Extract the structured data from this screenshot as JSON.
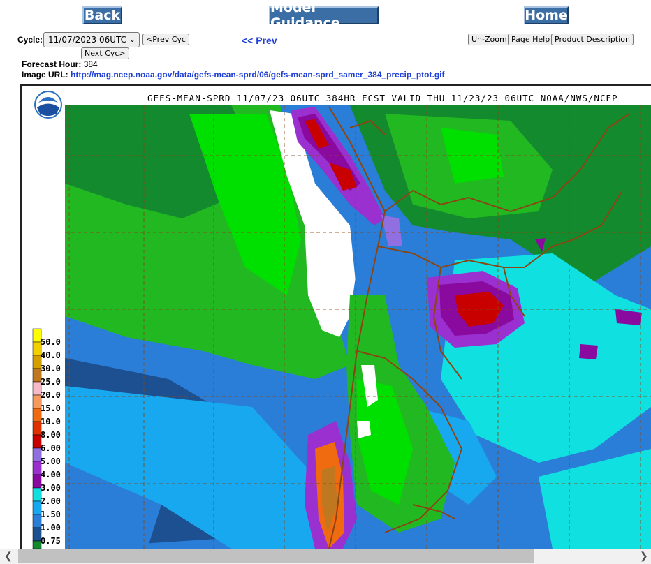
{
  "nav": {
    "back": "Back",
    "model_guidance": "Model Guidance",
    "home": "Home"
  },
  "cycle": {
    "label": "Cycle:",
    "selected": "11/07/2023 06UTC",
    "prev_cyc": "<Prev Cyc",
    "next_cyc": "Next Cyc>"
  },
  "prev_link": "<< Prev",
  "tools": {
    "unzoom": "Un-Zoom",
    "page_help": "Page Help",
    "product_description": "Product Description"
  },
  "info": {
    "forecast_hour_label": "Forecast Hour:",
    "forecast_hour": "384",
    "image_url_label": "Image URL:",
    "image_url": "http://mag.ncep.noaa.gov/data/gefs-mean-sprd/06/gefs-mean-sprd_samer_384_precip_ptot.gif"
  },
  "map": {
    "title": "GEFS-MEAN-SPRD 11/07/23 06UTC 384HR FCST VALID THU 11/23/23 06UTC NOAA/NWS/NCEP",
    "logo_text": "NOAA"
  },
  "legend": [
    {
      "label": "50.0",
      "color": "#ffff00"
    },
    {
      "label": "40.0",
      "color": "#f2d000"
    },
    {
      "label": "30.0",
      "color": "#d4a000"
    },
    {
      "label": "25.0",
      "color": "#c07820"
    },
    {
      "label": "20.0",
      "color": "#f7b8c8"
    },
    {
      "label": "15.0",
      "color": "#f59a5c"
    },
    {
      "label": "10.0",
      "color": "#f06a10"
    },
    {
      "label": "8.00",
      "color": "#e03000"
    },
    {
      "label": "6.00",
      "color": "#c80000"
    },
    {
      "label": "5.00",
      "color": "#9070e0"
    },
    {
      "label": "4.00",
      "color": "#9a30d0"
    },
    {
      "label": "3.00",
      "color": "#8a0aa0"
    },
    {
      "label": "2.00",
      "color": "#10e0e0"
    },
    {
      "label": "1.50",
      "color": "#18a8f0"
    },
    {
      "label": "1.00",
      "color": "#2a7ed8"
    },
    {
      "label": "0.75",
      "color": "#1c5090"
    }
  ],
  "colors": {
    "button_bg": "#3a6ea5",
    "link": "#1f3fd6",
    "ocean_dark": "#1c5090",
    "ocean_mid": "#2a7ed8",
    "ocean_light": "#18a8f0",
    "cyan": "#10e0e0",
    "green_bright": "#00e000",
    "green_mid": "#22b822",
    "green_dark": "#138a2e",
    "dry_white": "#ffffff",
    "purple": "#9a30d0",
    "magenta": "#8a0aa0",
    "red": "#c80000",
    "border_brown": "#8b4513"
  }
}
